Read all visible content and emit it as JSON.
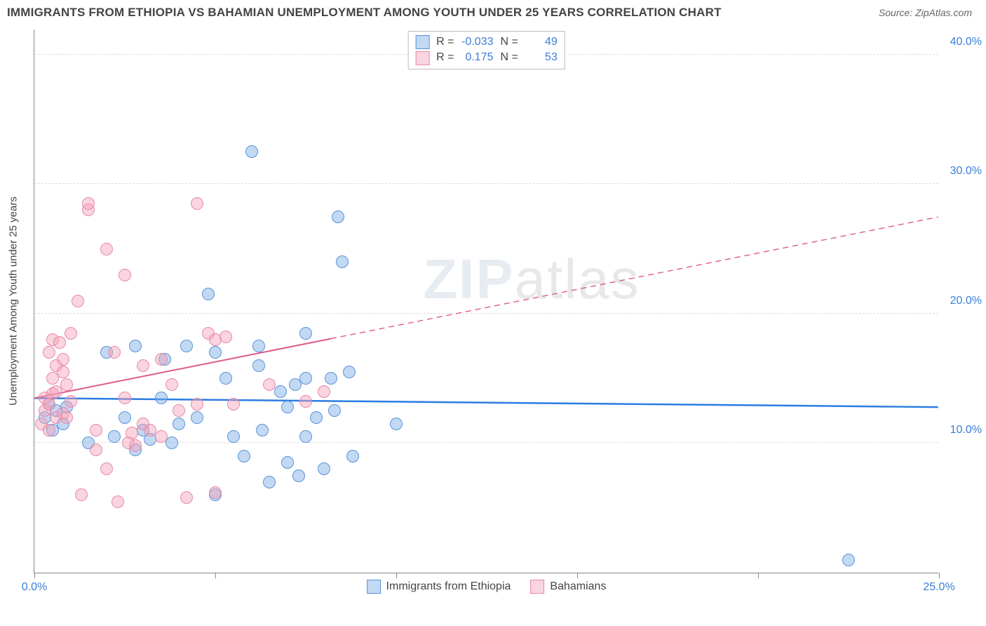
{
  "title": "IMMIGRANTS FROM ETHIOPIA VS BAHAMIAN UNEMPLOYMENT AMONG YOUTH UNDER 25 YEARS CORRELATION CHART",
  "source": "Source: ZipAtlas.com",
  "watermark_bold": "ZIP",
  "watermark_thin": "atlas",
  "yaxis_title": "Unemployment Among Youth under 25 years",
  "chart": {
    "type": "scatter",
    "background_color": "#ffffff",
    "grid_color": "#dddddd",
    "axis_color": "#888888",
    "xlim": [
      0,
      25
    ],
    "ylim": [
      0,
      42
    ],
    "xticks": [
      0,
      5,
      10,
      15,
      20,
      25
    ],
    "xticklabels": [
      "0.0%",
      "",
      "",
      "",
      "",
      "25.0%"
    ],
    "yticks": [
      10,
      20,
      30,
      40
    ],
    "yticklabels": [
      "10.0%",
      "20.0%",
      "30.0%",
      "40.0%"
    ],
    "point_radius": 9,
    "series": [
      {
        "name": "Immigrants from Ethiopia",
        "color_fill": "rgba(120,170,230,0.45)",
        "color_stroke": "#5b93d6",
        "trend_color": "#2b7de1",
        "trend_width": 2.5,
        "trend": {
          "x1": 0,
          "y1": 13.5,
          "x2": 25,
          "y2": 12.8,
          "solid_until_x": 25
        },
        "R": "-0.033",
        "N": "49",
        "points": [
          [
            0.3,
            12.0
          ],
          [
            0.4,
            13.0
          ],
          [
            0.5,
            11.0
          ],
          [
            0.6,
            12.5
          ],
          [
            0.8,
            11.5
          ],
          [
            0.9,
            12.8
          ],
          [
            1.5,
            10.0
          ],
          [
            2.0,
            17.0
          ],
          [
            2.2,
            10.5
          ],
          [
            2.5,
            12.0
          ],
          [
            2.8,
            9.5
          ],
          [
            2.8,
            17.5
          ],
          [
            3.0,
            11.0
          ],
          [
            3.2,
            10.3
          ],
          [
            3.6,
            16.5
          ],
          [
            3.8,
            10.0
          ],
          [
            4.0,
            11.5
          ],
          [
            4.2,
            17.5
          ],
          [
            4.5,
            12.0
          ],
          [
            4.8,
            21.5
          ],
          [
            5.0,
            17.0
          ],
          [
            5.0,
            6.0
          ],
          [
            5.3,
            15.0
          ],
          [
            5.5,
            10.5
          ],
          [
            5.8,
            9.0
          ],
          [
            6.0,
            32.5
          ],
          [
            6.2,
            17.5
          ],
          [
            6.2,
            16.0
          ],
          [
            6.3,
            11.0
          ],
          [
            6.5,
            7.0
          ],
          [
            6.8,
            14.0
          ],
          [
            7.0,
            8.5
          ],
          [
            7.2,
            14.5
          ],
          [
            7.3,
            7.5
          ],
          [
            7.5,
            18.5
          ],
          [
            7.5,
            15.0
          ],
          [
            7.5,
            10.5
          ],
          [
            7.8,
            12.0
          ],
          [
            8.0,
            8.0
          ],
          [
            8.2,
            15.0
          ],
          [
            8.3,
            12.5
          ],
          [
            8.4,
            27.5
          ],
          [
            8.5,
            24.0
          ],
          [
            8.7,
            15.5
          ],
          [
            8.8,
            9.0
          ],
          [
            10.0,
            11.5
          ],
          [
            22.5,
            1.0
          ],
          [
            7.0,
            12.8
          ],
          [
            3.5,
            13.5
          ]
        ]
      },
      {
        "name": "Bahamians",
        "color_fill": "rgba(245,160,185,0.45)",
        "color_stroke": "#e68aa8",
        "trend_color": "#dd5a88",
        "trend_width": 2,
        "trend": {
          "x1": 0,
          "y1": 13.5,
          "x2": 25,
          "y2": 27.5,
          "solid_until_x": 8.2
        },
        "R": "0.175",
        "N": "53",
        "points": [
          [
            0.2,
            11.5
          ],
          [
            0.3,
            12.5
          ],
          [
            0.3,
            13.5
          ],
          [
            0.4,
            13.0
          ],
          [
            0.4,
            17.0
          ],
          [
            0.4,
            11.0
          ],
          [
            0.5,
            15.0
          ],
          [
            0.5,
            18.0
          ],
          [
            0.5,
            13.8
          ],
          [
            0.6,
            12.0
          ],
          [
            0.6,
            16.0
          ],
          [
            0.6,
            14.0
          ],
          [
            0.7,
            17.8
          ],
          [
            0.8,
            16.5
          ],
          [
            0.8,
            12.3
          ],
          [
            0.8,
            15.5
          ],
          [
            0.9,
            12.0
          ],
          [
            0.9,
            14.5
          ],
          [
            1.0,
            13.2
          ],
          [
            1.2,
            21.0
          ],
          [
            1.3,
            6.0
          ],
          [
            1.5,
            28.0
          ],
          [
            1.5,
            28.5
          ],
          [
            1.7,
            9.5
          ],
          [
            1.7,
            11.0
          ],
          [
            2.0,
            25.0
          ],
          [
            2.0,
            8.0
          ],
          [
            2.2,
            17.0
          ],
          [
            2.3,
            5.5
          ],
          [
            2.5,
            23.0
          ],
          [
            2.5,
            13.5
          ],
          [
            2.6,
            10.0
          ],
          [
            2.7,
            10.8
          ],
          [
            2.8,
            9.8
          ],
          [
            3.0,
            16.0
          ],
          [
            3.0,
            11.5
          ],
          [
            3.2,
            11.0
          ],
          [
            3.5,
            16.5
          ],
          [
            3.5,
            10.5
          ],
          [
            3.8,
            14.5
          ],
          [
            4.0,
            12.5
          ],
          [
            4.2,
            5.8
          ],
          [
            4.5,
            28.5
          ],
          [
            4.5,
            13.0
          ],
          [
            4.8,
            18.5
          ],
          [
            5.0,
            18.0
          ],
          [
            5.0,
            6.2
          ],
          [
            5.3,
            18.2
          ],
          [
            5.5,
            13.0
          ],
          [
            6.5,
            14.5
          ],
          [
            7.5,
            13.2
          ],
          [
            8.0,
            14.0
          ],
          [
            1.0,
            18.5
          ]
        ]
      }
    ]
  },
  "stats_legend": {
    "r_label": "R =",
    "n_label": "N ="
  },
  "bottom_legend": {
    "series1": "Immigrants from Ethiopia",
    "series2": "Bahamians"
  }
}
